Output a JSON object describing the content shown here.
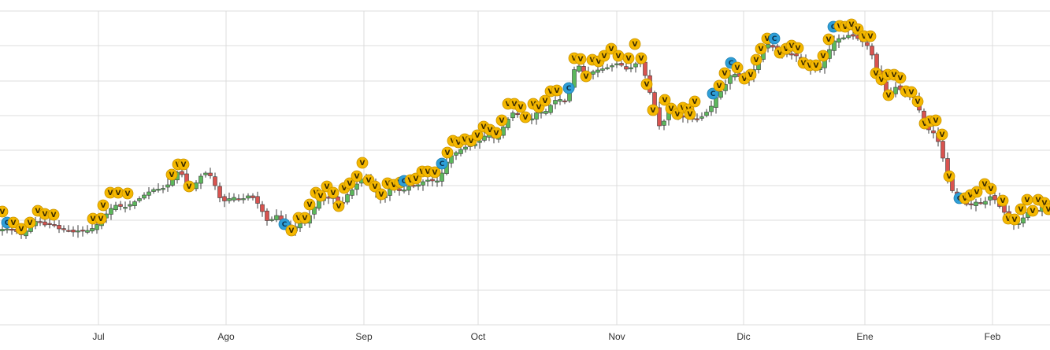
{
  "chart_data": {
    "type": "candlestick",
    "grid": true,
    "colors": {
      "up": "#5cb85c",
      "down": "#d9534f",
      "wick": "#3b3b3b",
      "grid": "#dcdcdc",
      "marker_v": "#f5b800",
      "marker_c": "#2f9fd8"
    },
    "x_ticks": [
      "Jul",
      "Ago",
      "Sep",
      "Oct",
      "Nov",
      "Dic",
      "Ene",
      "Feb"
    ],
    "close_path": [
      [
        0,
        295
      ],
      [
        6,
        288
      ],
      [
        12,
        294
      ],
      [
        18,
        289
      ],
      [
        24,
        300
      ],
      [
        30,
        297
      ],
      [
        36,
        290
      ],
      [
        42,
        284
      ],
      [
        48,
        279
      ],
      [
        54,
        285
      ],
      [
        60,
        287
      ],
      [
        66,
        283
      ],
      [
        72,
        289
      ],
      [
        78,
        293
      ],
      [
        84,
        290
      ],
      [
        90,
        296
      ],
      [
        96,
        294
      ],
      [
        102,
        293
      ],
      [
        108,
        294
      ],
      [
        114,
        292
      ],
      [
        120,
        289
      ],
      [
        126,
        282
      ],
      [
        132,
        276
      ],
      [
        138,
        268
      ],
      [
        144,
        262
      ],
      [
        150,
        260
      ],
      [
        156,
        265
      ],
      [
        162,
        262
      ],
      [
        168,
        258
      ],
      [
        174,
        255
      ],
      [
        180,
        250
      ],
      [
        186,
        246
      ],
      [
        192,
        242
      ],
      [
        198,
        240
      ],
      [
        204,
        241
      ],
      [
        210,
        238
      ],
      [
        216,
        232
      ],
      [
        222,
        222
      ],
      [
        228,
        216
      ],
      [
        234,
        228
      ],
      [
        240,
        242
      ],
      [
        246,
        235
      ],
      [
        252,
        230
      ],
      [
        258,
        218
      ],
      [
        264,
        222
      ],
      [
        270,
        225
      ],
      [
        276,
        247
      ],
      [
        282,
        256
      ],
      [
        288,
        255
      ],
      [
        294,
        250
      ],
      [
        300,
        252
      ],
      [
        306,
        255
      ],
      [
        312,
        250
      ],
      [
        318,
        248
      ],
      [
        324,
        255
      ],
      [
        330,
        262
      ],
      [
        336,
        276
      ],
      [
        342,
        285
      ],
      [
        348,
        273
      ],
      [
        354,
        275
      ],
      [
        360,
        284
      ],
      [
        366,
        290
      ],
      [
        372,
        294
      ],
      [
        378,
        282
      ],
      [
        384,
        286
      ],
      [
        390,
        280
      ],
      [
        396,
        268
      ],
      [
        402,
        258
      ],
      [
        408,
        252
      ],
      [
        414,
        250
      ],
      [
        420,
        254
      ],
      [
        426,
        247
      ],
      [
        432,
        268
      ],
      [
        438,
        250
      ],
      [
        444,
        245
      ],
      [
        450,
        238
      ],
      [
        456,
        230
      ],
      [
        462,
        225
      ],
      [
        468,
        228
      ],
      [
        474,
        240
      ],
      [
        480,
        248
      ],
      [
        486,
        255
      ],
      [
        492,
        243
      ],
      [
        498,
        238
      ],
      [
        504,
        240
      ],
      [
        510,
        245
      ],
      [
        516,
        238
      ],
      [
        522,
        236
      ],
      [
        528,
        238
      ],
      [
        534,
        232
      ],
      [
        540,
        230
      ],
      [
        546,
        228
      ],
      [
        552,
        232
      ],
      [
        558,
        228
      ],
      [
        564,
        212
      ],
      [
        570,
        200
      ],
      [
        576,
        196
      ],
      [
        582,
        192
      ],
      [
        588,
        188
      ],
      [
        594,
        186
      ],
      [
        600,
        184
      ],
      [
        606,
        182
      ],
      [
        612,
        176
      ],
      [
        618,
        170
      ],
      [
        624,
        173
      ],
      [
        630,
        178
      ],
      [
        636,
        165
      ],
      [
        642,
        158
      ],
      [
        648,
        145
      ],
      [
        654,
        142
      ],
      [
        660,
        148
      ],
      [
        666,
        150
      ],
      [
        672,
        155
      ],
      [
        678,
        147
      ],
      [
        684,
        140
      ],
      [
        690,
        145
      ],
      [
        696,
        138
      ],
      [
        702,
        130
      ],
      [
        708,
        125
      ],
      [
        714,
        128
      ],
      [
        720,
        130
      ],
      [
        726,
        95
      ],
      [
        732,
        82
      ],
      [
        738,
        86
      ],
      [
        744,
        96
      ],
      [
        750,
        92
      ],
      [
        756,
        90
      ],
      [
        762,
        88
      ],
      [
        768,
        87
      ],
      [
        774,
        85
      ],
      [
        780,
        82
      ],
      [
        786,
        80
      ],
      [
        792,
        86
      ],
      [
        798,
        90
      ],
      [
        804,
        82
      ],
      [
        810,
        80
      ],
      [
        816,
        82
      ],
      [
        822,
        110
      ],
      [
        828,
        125
      ],
      [
        834,
        150
      ],
      [
        840,
        170
      ],
      [
        846,
        138
      ],
      [
        852,
        140
      ],
      [
        858,
        148
      ],
      [
        864,
        150
      ],
      [
        870,
        148
      ],
      [
        876,
        152
      ],
      [
        882,
        150
      ],
      [
        888,
        152
      ],
      [
        894,
        145
      ],
      [
        900,
        140
      ],
      [
        906,
        130
      ],
      [
        912,
        118
      ],
      [
        918,
        115
      ],
      [
        924,
        100
      ],
      [
        930,
        92
      ],
      [
        936,
        97
      ],
      [
        942,
        98
      ],
      [
        948,
        105
      ],
      [
        954,
        95
      ],
      [
        960,
        82
      ],
      [
        966,
        70
      ],
      [
        972,
        55
      ],
      [
        978,
        58
      ],
      [
        984,
        62
      ],
      [
        990,
        70
      ],
      [
        996,
        65
      ],
      [
        1002,
        68
      ],
      [
        1008,
        72
      ],
      [
        1014,
        70
      ],
      [
        1020,
        82
      ],
      [
        1026,
        85
      ],
      [
        1032,
        90
      ],
      [
        1038,
        88
      ],
      [
        1044,
        82
      ],
      [
        1050,
        70
      ],
      [
        1056,
        56
      ],
      [
        1062,
        48
      ],
      [
        1068,
        50
      ],
      [
        1074,
        46
      ],
      [
        1080,
        44
      ],
      [
        1086,
        48
      ],
      [
        1092,
        50
      ],
      [
        1098,
        56
      ],
      [
        1104,
        60
      ],
      [
        1110,
        80
      ],
      [
        1116,
        98
      ],
      [
        1122,
        110
      ],
      [
        1128,
        125
      ],
      [
        1134,
        112
      ],
      [
        1140,
        110
      ],
      [
        1146,
        118
      ],
      [
        1152,
        125
      ],
      [
        1158,
        118
      ],
      [
        1164,
        130
      ],
      [
        1170,
        150
      ],
      [
        1176,
        162
      ],
      [
        1182,
        168
      ],
      [
        1188,
        170
      ],
      [
        1194,
        190
      ],
      [
        1200,
        212
      ],
      [
        1206,
        240
      ],
      [
        1212,
        245
      ],
      [
        1218,
        250
      ],
      [
        1224,
        258
      ],
      [
        1230,
        262
      ],
      [
        1236,
        258
      ],
      [
        1242,
        256
      ],
      [
        1248,
        260
      ],
      [
        1254,
        252
      ],
      [
        1260,
        248
      ],
      [
        1266,
        260
      ],
      [
        1272,
        265
      ],
      [
        1278,
        275
      ],
      [
        1284,
        283
      ],
      [
        1290,
        286
      ],
      [
        1296,
        282
      ],
      [
        1302,
        272
      ],
      [
        1308,
        268
      ],
      [
        1314,
        270
      ],
      [
        1320,
        265
      ],
      [
        1326,
        262
      ],
      [
        1333,
        266
      ]
    ],
    "markers": [
      [
        "V",
        3,
        269
      ],
      [
        "C",
        9,
        283
      ],
      [
        "V",
        17,
        283
      ],
      [
        "V",
        27,
        291
      ],
      [
        "V",
        38,
        283
      ],
      [
        "V",
        48,
        268
      ],
      [
        "V",
        57,
        272
      ],
      [
        "V",
        68,
        273
      ],
      [
        "V",
        118,
        278
      ],
      [
        "V",
        128,
        278
      ],
      [
        "V",
        140,
        245
      ],
      [
        "V",
        150,
        245
      ],
      [
        "V",
        162,
        246
      ],
      [
        "V",
        131,
        261
      ],
      [
        "V",
        218,
        222
      ],
      [
        "V",
        226,
        209
      ],
      [
        "V",
        233,
        209
      ],
      [
        "V",
        240,
        237
      ],
      [
        "C",
        361,
        285
      ],
      [
        "V",
        370,
        293
      ],
      [
        "V",
        379,
        277
      ],
      [
        "V",
        387,
        277
      ],
      [
        "V",
        393,
        260
      ],
      [
        "V",
        401,
        245
      ],
      [
        "V",
        407,
        249
      ],
      [
        "V",
        415,
        237
      ],
      [
        "V",
        423,
        245
      ],
      [
        "V",
        430,
        262
      ],
      [
        "V",
        437,
        239
      ],
      [
        "V",
        444,
        233
      ],
      [
        "V",
        453,
        224
      ],
      [
        "V",
        460,
        207
      ],
      [
        "V",
        468,
        229
      ],
      [
        "V",
        476,
        237
      ],
      [
        "V",
        484,
        247
      ],
      [
        "V",
        492,
        233
      ],
      [
        "V",
        500,
        235
      ],
      [
        "V",
        508,
        232
      ],
      [
        "C",
        513,
        230
      ],
      [
        "V",
        521,
        229
      ],
      [
        "V",
        528,
        227
      ],
      [
        "V",
        536,
        218
      ],
      [
        "V",
        543,
        218
      ],
      [
        "V",
        552,
        219
      ],
      [
        "C",
        561,
        208
      ],
      [
        "V",
        568,
        194
      ],
      [
        "V",
        575,
        179
      ],
      [
        "V",
        582,
        181
      ],
      [
        "V",
        590,
        177
      ],
      [
        "V",
        598,
        179
      ],
      [
        "V",
        606,
        172
      ],
      [
        "V",
        614,
        161
      ],
      [
        "V",
        622,
        165
      ],
      [
        "V",
        630,
        169
      ],
      [
        "V",
        637,
        153
      ],
      [
        "V",
        645,
        132
      ],
      [
        "V",
        653,
        132
      ],
      [
        "V",
        661,
        136
      ],
      [
        "V",
        667,
        149
      ],
      [
        "V",
        677,
        132
      ],
      [
        "V",
        684,
        136
      ],
      [
        "V",
        692,
        128
      ],
      [
        "V",
        699,
        116
      ],
      [
        "V",
        707,
        115
      ],
      [
        "C",
        722,
        112
      ],
      [
        "V",
        729,
        74
      ],
      [
        "V",
        737,
        75
      ],
      [
        "V",
        744,
        97
      ],
      [
        "V",
        752,
        76
      ],
      [
        "V",
        760,
        78
      ],
      [
        "V",
        767,
        71
      ],
      [
        "V",
        776,
        62
      ],
      [
        "V",
        785,
        71
      ],
      [
        "V",
        798,
        74
      ],
      [
        "V",
        806,
        56
      ],
      [
        "V",
        814,
        74
      ],
      [
        "V",
        821,
        107
      ],
      [
        "V",
        829,
        140
      ],
      [
        "V",
        844,
        127
      ],
      [
        "V",
        852,
        138
      ],
      [
        "V",
        860,
        145
      ],
      [
        "V",
        867,
        137
      ],
      [
        "V",
        874,
        139
      ],
      [
        "V",
        882,
        129
      ],
      [
        "V",
        876,
        145
      ],
      [
        "C",
        905,
        119
      ],
      [
        "V",
        913,
        109
      ],
      [
        "V",
        920,
        93
      ],
      [
        "C",
        928,
        80
      ],
      [
        "V",
        936,
        86
      ],
      [
        "V",
        945,
        100
      ],
      [
        "V",
        953,
        95
      ],
      [
        "V",
        960,
        76
      ],
      [
        "V",
        966,
        62
      ],
      [
        "V",
        974,
        49
      ],
      [
        "C",
        983,
        49
      ],
      [
        "V",
        990,
        67
      ],
      [
        "V",
        998,
        62
      ],
      [
        "V",
        1005,
        58
      ],
      [
        "V",
        1013,
        61
      ],
      [
        "V",
        1020,
        80
      ],
      [
        "V",
        1028,
        83
      ],
      [
        "V",
        1036,
        83
      ],
      [
        "V",
        1045,
        71
      ],
      [
        "V",
        1052,
        50
      ],
      [
        "C",
        1058,
        34
      ],
      [
        "V",
        1066,
        33
      ],
      [
        "V",
        1073,
        34
      ],
      [
        "V",
        1081,
        31
      ],
      [
        "V",
        1089,
        37
      ],
      [
        "V",
        1097,
        46
      ],
      [
        "V",
        1105,
        46
      ],
      [
        "V",
        1112,
        93
      ],
      [
        "V",
        1119,
        101
      ],
      [
        "V",
        1127,
        95
      ],
      [
        "V",
        1135,
        95
      ],
      [
        "V",
        1143,
        99
      ],
      [
        "V",
        1150,
        116
      ],
      [
        "V",
        1157,
        117
      ],
      [
        "V",
        1165,
        129
      ],
      [
        "V",
        1128,
        121
      ],
      [
        "V",
        1174,
        157
      ],
      [
        "V",
        1181,
        154
      ],
      [
        "V",
        1188,
        153
      ],
      [
        "V",
        1196,
        171
      ],
      [
        "V",
        1205,
        224
      ],
      [
        "C",
        1218,
        252
      ],
      [
        "V",
        1225,
        252
      ],
      [
        "V",
        1232,
        248
      ],
      [
        "V",
        1240,
        244
      ],
      [
        "V",
        1250,
        234
      ],
      [
        "V",
        1258,
        240
      ],
      [
        "V",
        1273,
        255
      ],
      [
        "V",
        1280,
        278
      ],
      [
        "V",
        1288,
        279
      ],
      [
        "V",
        1296,
        266
      ],
      [
        "V",
        1304,
        254
      ],
      [
        "V",
        1311,
        268
      ],
      [
        "V",
        1318,
        254
      ],
      [
        "V",
        1326,
        258
      ],
      [
        "V",
        1331,
        266
      ]
    ]
  }
}
